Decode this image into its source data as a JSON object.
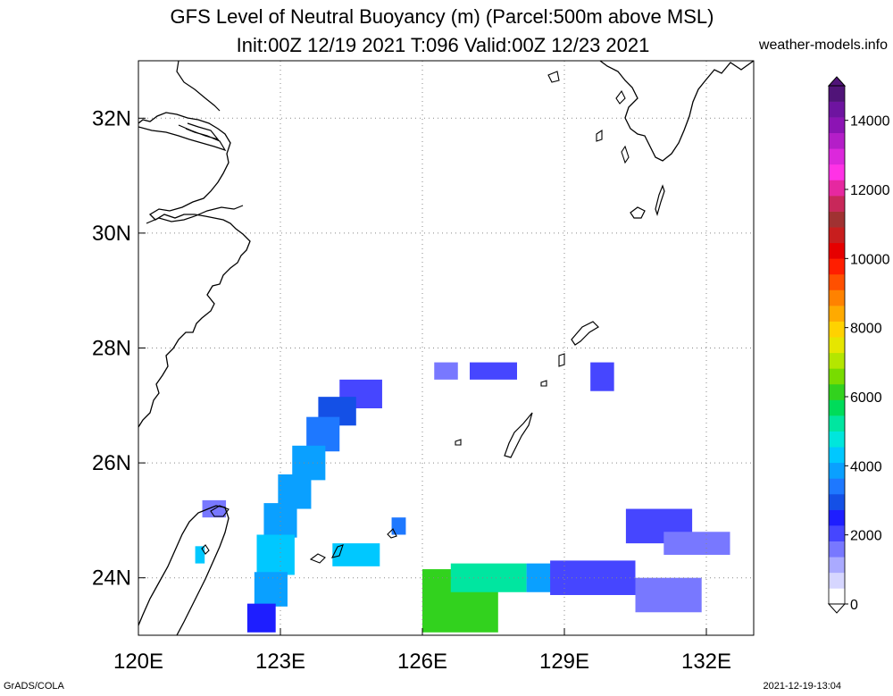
{
  "title": {
    "line1": "GFS Level of Neutral Buoyancy (m) (Parcel:500m above MSL)",
    "line2": "Init:00Z 12/19 2021 T:096 Valid:00Z 12/23 2021"
  },
  "watermark": "weather-models.info",
  "footer": {
    "left": "GrADS/COLA",
    "right": "2021-12-19-13:04"
  },
  "map": {
    "lon_range": [
      120,
      133
    ],
    "lat_range": [
      23,
      33
    ],
    "lon_ticks": [
      {
        "value": 120,
        "label": "120E"
      },
      {
        "value": 123,
        "label": "123E"
      },
      {
        "value": 126,
        "label": "126E"
      },
      {
        "value": 129,
        "label": "129E"
      },
      {
        "value": 132,
        "label": "132E"
      }
    ],
    "lat_ticks": [
      {
        "value": 24,
        "label": "24N"
      },
      {
        "value": 26,
        "label": "26N"
      },
      {
        "value": 28,
        "label": "28N"
      },
      {
        "value": 30,
        "label": "30N"
      },
      {
        "value": 32,
        "label": "32N"
      }
    ],
    "gridlines": true
  },
  "colorbar": {
    "labels": [
      "0",
      "2000",
      "4000",
      "6000",
      "8000",
      "10000",
      "12000",
      "14000"
    ],
    "colors": [
      "#ffffff",
      "#d6d6ff",
      "#aaaaff",
      "#7878ff",
      "#4646ff",
      "#1e1eff",
      "#1450e6",
      "#1e78ff",
      "#0aa0ff",
      "#00c8ff",
      "#00e6dc",
      "#00e6a0",
      "#00dc5a",
      "#32d21e",
      "#78dc00",
      "#b4e600",
      "#e6e600",
      "#ffd200",
      "#ffaa00",
      "#ff8200",
      "#ff5000",
      "#ff1e00",
      "#e60000",
      "#c81e1e",
      "#a03232",
      "#c8285a",
      "#e628a0",
      "#ff32e6",
      "#dc28dc",
      "#b41ec8",
      "#8c14b4",
      "#6e14a0",
      "#501478"
    ]
  },
  "field": {
    "description_units": "m",
    "cells": [
      {
        "lon": 124.7,
        "lat": 27.2,
        "v": 2000,
        "w": 0.9,
        "h": 0.5
      },
      {
        "lon": 124.2,
        "lat": 26.9,
        "v": 2600,
        "w": 0.8,
        "h": 0.5
      },
      {
        "lon": 123.9,
        "lat": 26.5,
        "v": 3200,
        "w": 0.7,
        "h": 0.6
      },
      {
        "lon": 123.6,
        "lat": 26.0,
        "v": 3600,
        "w": 0.7,
        "h": 0.6
      },
      {
        "lon": 123.3,
        "lat": 25.5,
        "v": 3900,
        "w": 0.7,
        "h": 0.6
      },
      {
        "lon": 123.0,
        "lat": 25.0,
        "v": 3800,
        "w": 0.7,
        "h": 0.6
      },
      {
        "lon": 122.9,
        "lat": 24.4,
        "v": 4100,
        "w": 0.8,
        "h": 0.7
      },
      {
        "lon": 122.8,
        "lat": 23.8,
        "v": 3800,
        "w": 0.7,
        "h": 0.6
      },
      {
        "lon": 122.6,
        "lat": 23.3,
        "v": 2200,
        "w": 0.6,
        "h": 0.5
      },
      {
        "lon": 124.6,
        "lat": 24.4,
        "v": 4300,
        "w": 1.0,
        "h": 0.4
      },
      {
        "lon": 126.8,
        "lat": 23.6,
        "v": 6000,
        "w": 1.6,
        "h": 1.1
      },
      {
        "lon": 127.4,
        "lat": 24.0,
        "v": 5200,
        "w": 1.6,
        "h": 0.5
      },
      {
        "lon": 128.5,
        "lat": 24.0,
        "v": 3600,
        "w": 0.6,
        "h": 0.5
      },
      {
        "lon": 129.6,
        "lat": 24.0,
        "v": 2000,
        "w": 1.8,
        "h": 0.6
      },
      {
        "lon": 131.2,
        "lat": 23.7,
        "v": 1600,
        "w": 1.4,
        "h": 0.6
      },
      {
        "lon": 131.0,
        "lat": 24.9,
        "v": 2000,
        "w": 1.4,
        "h": 0.6
      },
      {
        "lon": 131.8,
        "lat": 24.6,
        "v": 1600,
        "w": 1.4,
        "h": 0.4
      },
      {
        "lon": 127.5,
        "lat": 27.6,
        "v": 1900,
        "w": 1.0,
        "h": 0.3
      },
      {
        "lon": 126.5,
        "lat": 27.6,
        "v": 1600,
        "w": 0.5,
        "h": 0.3
      },
      {
        "lon": 129.8,
        "lat": 27.5,
        "v": 1700,
        "w": 0.5,
        "h": 0.5
      },
      {
        "lon": 121.6,
        "lat": 25.2,
        "v": 1500,
        "w": 0.5,
        "h": 0.3
      },
      {
        "lon": 121.3,
        "lat": 24.4,
        "v": 4400,
        "w": 0.2,
        "h": 0.3
      },
      {
        "lon": 125.5,
        "lat": 24.9,
        "v": 3200,
        "w": 0.3,
        "h": 0.3
      }
    ]
  }
}
